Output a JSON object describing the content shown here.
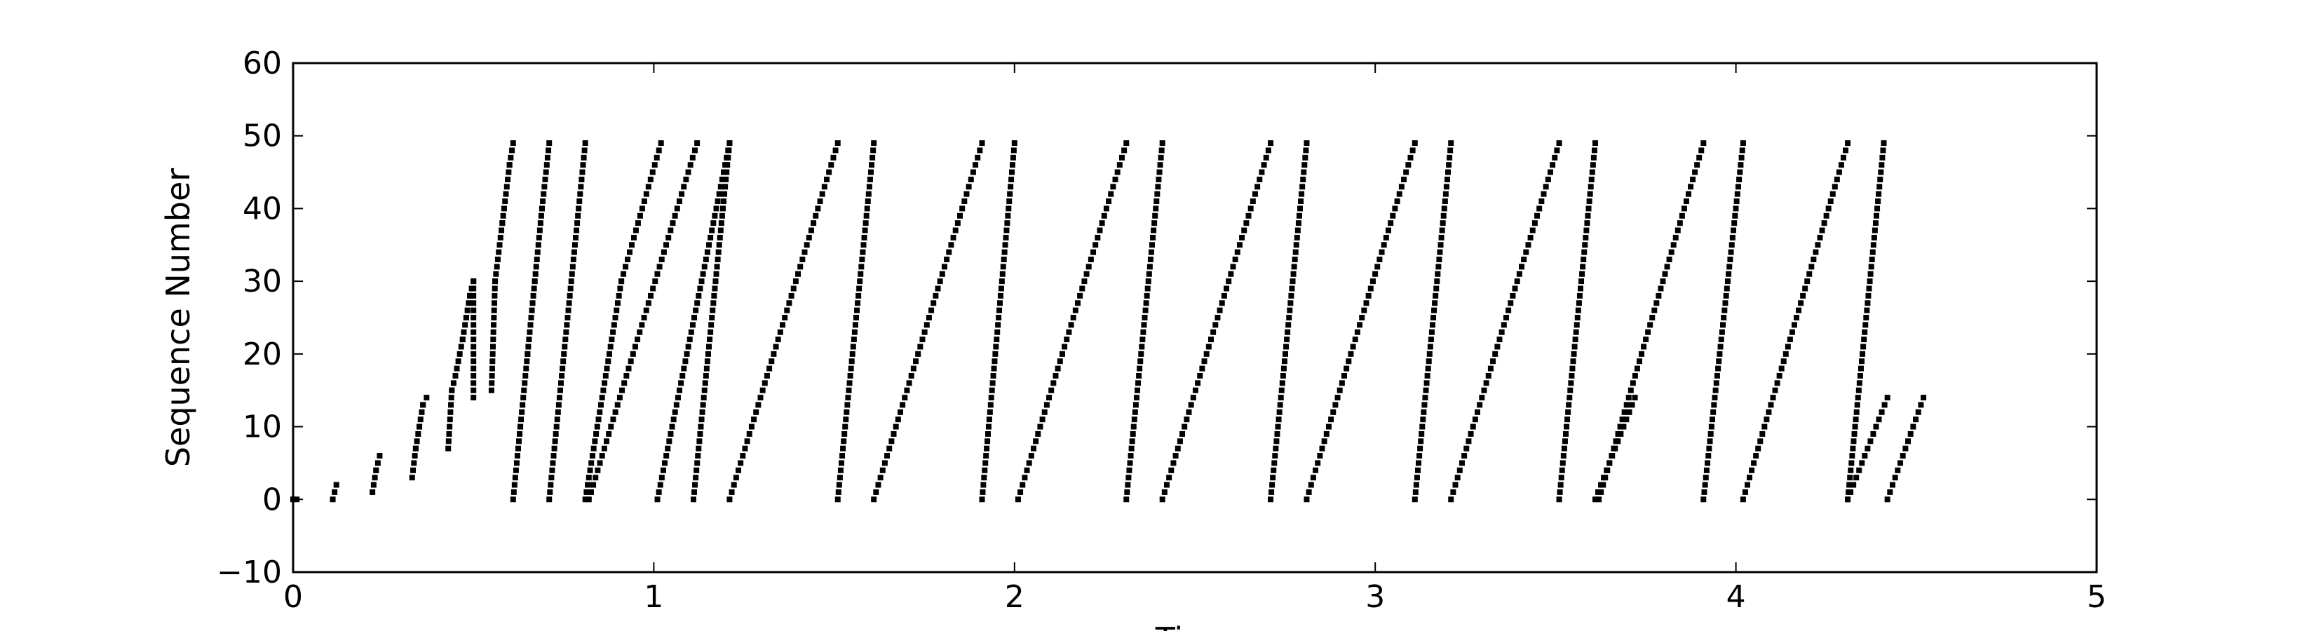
{
  "chart_data": {
    "type": "scatter",
    "title": "",
    "xlabel": "Time",
    "ylabel": "Sequence Number",
    "xlim": [
      0,
      5
    ],
    "ylim": [
      -10,
      60
    ],
    "xticks": [
      "0",
      "1",
      "2",
      "3",
      "4",
      "5"
    ],
    "yticks": [
      "−10",
      "0",
      "10",
      "20",
      "30",
      "40",
      "50",
      "60"
    ],
    "grid": false,
    "legend": "none",
    "marker_color": "#000000",
    "series": [
      {
        "values": [
          [
            0.0,
            0
          ],
          [
            0.01,
            0
          ]
        ]
      },
      {
        "values": [
          [
            0.11,
            0
          ],
          [
            0.12,
            2
          ]
        ]
      },
      {
        "values": [
          [
            0.22,
            1
          ],
          [
            0.23,
            4
          ],
          [
            0.24,
            6
          ]
        ]
      },
      {
        "values": [
          [
            0.33,
            3
          ],
          [
            0.34,
            7
          ],
          [
            0.35,
            10
          ],
          [
            0.36,
            13
          ],
          [
            0.37,
            14
          ]
        ]
      },
      {
        "values": [
          [
            0.43,
            7
          ],
          [
            0.44,
            15
          ],
          [
            0.45,
            17
          ],
          [
            0.47,
            22
          ],
          [
            0.48,
            25
          ],
          [
            0.49,
            28
          ],
          [
            0.5,
            30
          ],
          [
            0.5,
            14
          ]
        ]
      },
      {
        "values": [
          [
            0.55,
            15
          ],
          [
            0.56,
            30
          ],
          [
            0.58,
            38
          ],
          [
            0.6,
            46
          ],
          [
            0.61,
            49
          ]
        ]
      },
      {
        "values": [
          [
            0.61,
            0
          ],
          [
            0.63,
            10
          ],
          [
            0.65,
            20
          ],
          [
            0.67,
            30
          ],
          [
            0.69,
            40
          ],
          [
            0.71,
            49
          ]
        ]
      },
      {
        "values": [
          [
            0.71,
            0
          ],
          [
            0.81,
            49
          ]
        ]
      },
      {
        "values": [
          [
            0.81,
            0
          ],
          [
            0.91,
            30
          ],
          [
            1.02,
            49
          ]
        ]
      },
      {
        "values": [
          [
            0.82,
            0
          ],
          [
            1.12,
            49
          ]
        ]
      },
      {
        "values": [
          [
            1.01,
            0
          ],
          [
            1.21,
            49
          ]
        ]
      },
      {
        "values": [
          [
            1.11,
            0
          ],
          [
            1.21,
            49
          ]
        ]
      },
      {
        "values": [
          [
            1.21,
            0
          ],
          [
            1.51,
            49
          ]
        ]
      },
      {
        "values": [
          [
            1.51,
            0
          ],
          [
            1.61,
            49
          ]
        ]
      },
      {
        "values": [
          [
            1.61,
            0
          ],
          [
            1.91,
            49
          ]
        ]
      },
      {
        "values": [
          [
            1.91,
            0
          ],
          [
            2.0,
            49
          ]
        ]
      },
      {
        "values": [
          [
            2.01,
            0
          ],
          [
            2.31,
            49
          ]
        ]
      },
      {
        "values": [
          [
            2.31,
            0
          ],
          [
            2.41,
            49
          ]
        ]
      },
      {
        "values": [
          [
            2.41,
            0
          ],
          [
            2.71,
            49
          ]
        ]
      },
      {
        "values": [
          [
            2.71,
            0
          ],
          [
            2.81,
            49
          ]
        ]
      },
      {
        "values": [
          [
            2.81,
            0
          ],
          [
            3.11,
            49
          ]
        ]
      },
      {
        "values": [
          [
            3.11,
            0
          ],
          [
            3.21,
            49
          ]
        ]
      },
      {
        "values": [
          [
            3.21,
            0
          ],
          [
            3.51,
            49
          ]
        ]
      },
      {
        "values": [
          [
            3.51,
            0
          ],
          [
            3.61,
            49
          ]
        ]
      },
      {
        "values": [
          [
            3.61,
            0
          ],
          [
            3.72,
            14
          ]
        ]
      },
      {
        "values": [
          [
            3.62,
            0
          ],
          [
            3.91,
            49
          ]
        ]
      },
      {
        "values": [
          [
            3.91,
            0
          ],
          [
            4.02,
            49
          ]
        ]
      },
      {
        "values": [
          [
            4.02,
            0
          ],
          [
            4.31,
            49
          ]
        ]
      },
      {
        "values": [
          [
            4.31,
            0
          ],
          [
            4.41,
            49
          ]
        ]
      },
      {
        "values": [
          [
            4.31,
            0
          ],
          [
            4.42,
            14
          ]
        ]
      },
      {
        "values": [
          [
            4.42,
            0
          ],
          [
            4.52,
            14
          ]
        ]
      }
    ]
  }
}
